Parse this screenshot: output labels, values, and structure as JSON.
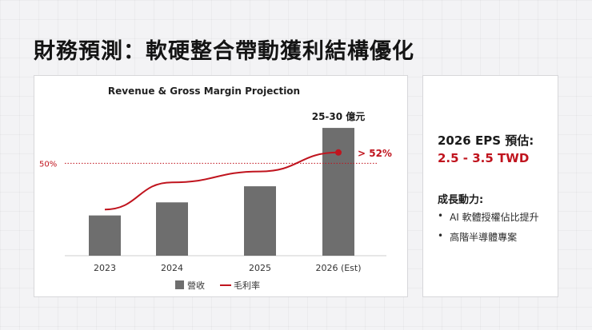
{
  "slide": {
    "title": "財務預測：軟硬整合帶動獲利結構優化"
  },
  "chart_data": {
    "type": "bar+line",
    "title": "Revenue & Gross Margin Projection",
    "categories": [
      "2023",
      "2024",
      "2025",
      "2026 (Est)"
    ],
    "series": [
      {
        "name": "營收",
        "kind": "bar",
        "values": [
          40,
          53,
          69,
          127
        ],
        "color": "#6e6e6e"
      },
      {
        "name": "毛利率",
        "kind": "line",
        "values": [
          41.5,
          46.5,
          48.5,
          52
        ],
        "color": "#c0141e"
      }
    ],
    "bar_annotation": "25-30 億元",
    "line_annotation": "> 52%",
    "reference_line": {
      "value": 50,
      "label": "50%",
      "color": "#c0141e",
      "style": "dotted"
    },
    "bar_ylim": [
      0,
      135
    ],
    "line_ylim": [
      33,
      58
    ],
    "legend": {
      "placement": "bottom-center"
    }
  },
  "summary": {
    "eps_label": "2026 EPS 預估:",
    "eps_value": "2.5 - 3.5 TWD",
    "drivers_label": "成長動力:",
    "drivers": [
      {
        "bullet": "•",
        "text": "AI 軟體授權佔比提升"
      },
      {
        "bullet": "•",
        "text": "高階半導體專案"
      }
    ]
  }
}
